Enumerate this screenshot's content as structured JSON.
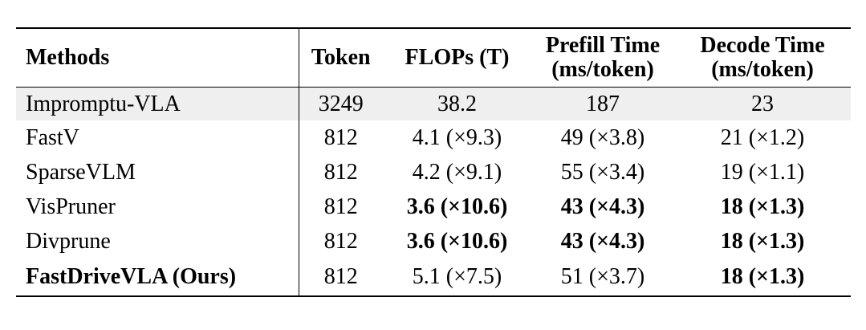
{
  "table": {
    "header": [
      [
        "Methods"
      ],
      [
        "Token"
      ],
      [
        "FLOPs (T)"
      ],
      [
        "Prefill Time",
        "(ms/token)"
      ],
      [
        "Decode Time",
        "(ms/token)"
      ]
    ],
    "rows": [
      {
        "cells": [
          "Impromptu-VLA",
          "3249",
          "38.2",
          "187",
          "23"
        ],
        "bold": [
          false,
          false,
          false,
          false,
          false
        ],
        "highlight": true
      },
      {
        "cells": [
          "FastV",
          "812",
          "4.1 (×9.3)",
          "49 (×3.8)",
          "21 (×1.2)"
        ],
        "bold": [
          false,
          false,
          false,
          false,
          false
        ],
        "highlight": false
      },
      {
        "cells": [
          "SparseVLM",
          "812",
          "4.2 (×9.1)",
          "55 (×3.4)",
          "19 (×1.1)"
        ],
        "bold": [
          false,
          false,
          false,
          false,
          false
        ],
        "highlight": false
      },
      {
        "cells": [
          "VisPruner",
          "812",
          "3.6 (×10.6)",
          "43 (×4.3)",
          "18 (×1.3)"
        ],
        "bold": [
          false,
          false,
          true,
          true,
          true
        ],
        "highlight": false
      },
      {
        "cells": [
          "Divprune",
          "812",
          "3.6 (×10.6)",
          "43 (×4.3)",
          "18 (×1.3)"
        ],
        "bold": [
          false,
          false,
          true,
          true,
          true
        ],
        "highlight": false
      },
      {
        "cells": [
          "FastDriveVLA (Ours)",
          "812",
          "5.1 (×7.5)",
          "51 (×3.7)",
          "18 (×1.3)"
        ],
        "bold": [
          true,
          false,
          false,
          false,
          true
        ],
        "highlight": false
      }
    ]
  }
}
